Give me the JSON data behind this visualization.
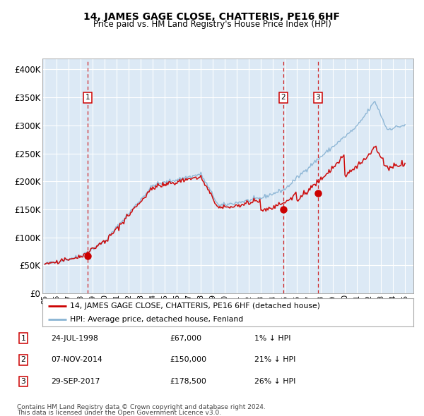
{
  "title": "14, JAMES GAGE CLOSE, CHATTERIS, PE16 6HF",
  "subtitle": "Price paid vs. HM Land Registry's House Price Index (HPI)",
  "bg_color": "#dce9f5",
  "red_line_color": "#cc0000",
  "blue_line_color": "#8ab4d4",
  "sales": [
    {
      "date_num": 1998.56,
      "price": 67000,
      "label": "1"
    },
    {
      "date_num": 2014.85,
      "price": 150000,
      "label": "2"
    },
    {
      "date_num": 2017.74,
      "price": 178500,
      "label": "3"
    }
  ],
  "sale_table": [
    {
      "num": "1",
      "date": "24-JUL-1998",
      "price": "£67,000",
      "note": "1% ↓ HPI"
    },
    {
      "num": "2",
      "date": "07-NOV-2014",
      "price": "£150,000",
      "note": "21% ↓ HPI"
    },
    {
      "num": "3",
      "date": "29-SEP-2017",
      "price": "£178,500",
      "note": "26% ↓ HPI"
    }
  ],
  "legend_entries": [
    "14, JAMES GAGE CLOSE, CHATTERIS, PE16 6HF (detached house)",
    "HPI: Average price, detached house, Fenland"
  ],
  "footnote1": "Contains HM Land Registry data © Crown copyright and database right 2024.",
  "footnote2": "This data is licensed under the Open Government Licence v3.0.",
  "ylim": [
    0,
    420000
  ],
  "yticks": [
    0,
    50000,
    100000,
    150000,
    200000,
    250000,
    300000,
    350000,
    400000
  ],
  "ytick_labels": [
    "£0",
    "£50K",
    "£100K",
    "£150K",
    "£200K",
    "£250K",
    "£300K",
    "£350K",
    "£400K"
  ],
  "xlim_start": 1994.8,
  "xlim_end": 2025.7,
  "xticks": [
    1995,
    1996,
    1997,
    1998,
    1999,
    2000,
    2001,
    2002,
    2003,
    2004,
    2005,
    2006,
    2007,
    2008,
    2009,
    2010,
    2011,
    2012,
    2013,
    2014,
    2015,
    2016,
    2017,
    2018,
    2019,
    2020,
    2021,
    2022,
    2023,
    2024,
    2025
  ]
}
